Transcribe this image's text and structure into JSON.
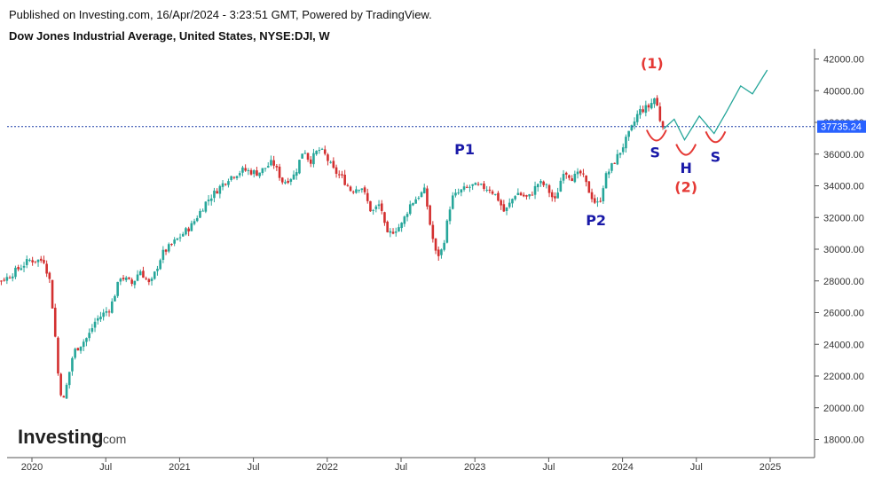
{
  "header": {
    "published": "Published on Investing.com, 16/Apr/2024 - 3:23:51 GMT, Powered by TradingView.",
    "symbol": "Dow Jones Industrial Average, United States, NYSE:DJI, W"
  },
  "logo": {
    "main": "Investing",
    "suffix": ".com"
  },
  "colors": {
    "up": "#26a69a",
    "down": "#d32f2f",
    "projection": "#26a69a",
    "arc": "#e53935",
    "label_blue": "#1a1aa8",
    "label_red": "#e53935",
    "price_badge": "#2962ff",
    "price_line": "#1f3fa8"
  },
  "chart_data": {
    "type": "line",
    "title": "Dow Jones Industrial Average, United States, NYSE:DJI, W",
    "y_ticks": [
      "18000.00",
      "20000.00",
      "22000.00",
      "24000.00",
      "26000.00",
      "28000.00",
      "30000.00",
      "32000.00",
      "34000.00",
      "36000.00",
      "38000.00",
      "40000.00",
      "42000.00"
    ],
    "x_ticks": [
      "2020",
      "Jul",
      "2021",
      "Jul",
      "2022",
      "Jul",
      "2023",
      "Jul",
      "2024",
      "Jul",
      "2025"
    ],
    "ylim": [
      17000,
      42800
    ],
    "current_price": "37735.24",
    "price_series": {
      "x": [
        2019.6,
        2019.85,
        2020.0,
        2020.1,
        2020.14,
        2020.17,
        2020.2,
        2020.23,
        2020.3,
        2020.4,
        2020.45,
        2020.55,
        2020.62,
        2020.7,
        2020.75,
        2020.82,
        2020.9,
        2021.0,
        2021.1,
        2021.2,
        2021.35,
        2021.45,
        2021.55,
        2021.65,
        2021.72,
        2021.8,
        2021.86,
        2021.9,
        2021.96,
        2022.0,
        2022.06,
        2022.12,
        2022.18,
        2022.25,
        2022.32,
        2022.38,
        2022.42,
        2022.47,
        2022.52,
        2022.58,
        2022.63,
        2022.68,
        2022.72,
        2022.76,
        2022.8,
        2022.86,
        2022.93,
        2023.0,
        2023.08,
        2023.12,
        2023.17,
        2023.22,
        2023.3,
        2023.38,
        2023.45,
        2023.5,
        2023.56,
        2023.62,
        2023.68,
        2023.74,
        2023.8,
        2023.83,
        2023.86,
        2023.9,
        2024.0,
        2024.07,
        2024.13,
        2024.2,
        2024.24,
        2024.28
      ],
      "y": [
        27400,
        28200,
        29300,
        29300,
        28000,
        25300,
        21700,
        20300,
        23500,
        24500,
        25500,
        26300,
        28300,
        27800,
        28700,
        27700,
        29700,
        30600,
        31500,
        33000,
        34500,
        35000,
        34800,
        35500,
        34200,
        34700,
        36400,
        35500,
        36300,
        36000,
        35000,
        34500,
        33700,
        34000,
        32300,
        32900,
        30800,
        31200,
        31500,
        32800,
        33300,
        33700,
        31300,
        29500,
        30000,
        33200,
        33700,
        34000,
        33900,
        33800,
        33300,
        32300,
        33600,
        33200,
        34200,
        34000,
        33000,
        35000,
        34500,
        34800,
        33500,
        33000,
        32800,
        34500,
        36100,
        37400,
        38700,
        39000,
        39600,
        37900
      ]
    },
    "projection_series": {
      "x": [
        2024.28,
        2024.35,
        2024.42,
        2024.52,
        2024.62,
        2024.7,
        2024.8,
        2024.88,
        2024.98
      ],
      "y": [
        37600,
        38200,
        36900,
        38400,
        37300,
        38600,
        40300,
        39800,
        41300
      ]
    },
    "annotations": [
      {
        "text": "P1",
        "x": 2022.93,
        "y": 36000,
        "color": "blue"
      },
      {
        "text": "P2",
        "x": 2023.82,
        "y": 31500,
        "color": "blue"
      },
      {
        "text": "(1)",
        "x": 2024.2,
        "y": 41400,
        "color": "red"
      },
      {
        "text": "S",
        "x": 2024.22,
        "y": 35800,
        "color": "blue"
      },
      {
        "text": "H",
        "x": 2024.43,
        "y": 34800,
        "color": "blue"
      },
      {
        "text": "(2)",
        "x": 2024.43,
        "y": 33600,
        "color": "red"
      },
      {
        "text": "S",
        "x": 2024.63,
        "y": 35500,
        "color": "blue"
      }
    ],
    "arcs": [
      {
        "x": 2024.23,
        "y": 37300
      },
      {
        "x": 2024.43,
        "y": 36400
      },
      {
        "x": 2024.63,
        "y": 37200
      }
    ]
  }
}
